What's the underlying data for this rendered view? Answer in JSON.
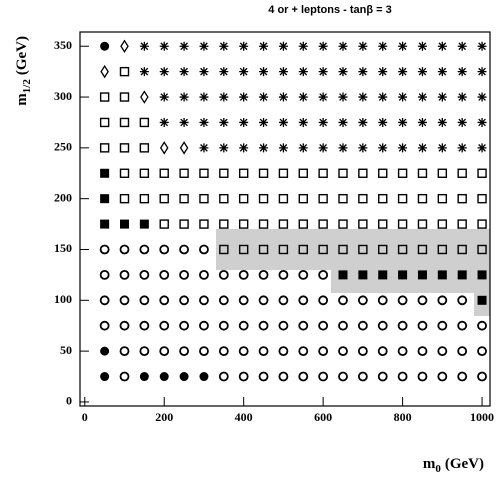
{
  "chart_data": {
    "type": "scatter",
    "title": "4 or + leptons - tanβ = 3",
    "x_label": {
      "main": "m",
      "sub": "0",
      "unit": "(GeV)"
    },
    "y_label": {
      "main": "m",
      "sub": "1/2",
      "unit": "(GeV)"
    },
    "xlim": [
      -12,
      1020
    ],
    "ylim": [
      -4,
      364
    ],
    "xticks": [
      0,
      200,
      400,
      600,
      800,
      1000
    ],
    "yticks": [
      0,
      50,
      100,
      150,
      200,
      250,
      300,
      350
    ],
    "series": [
      {
        "marker": "filled-circle",
        "color": "#000000",
        "x": [
          50,
          50,
          50,
          150,
          200,
          250,
          300
        ],
        "y": [
          350,
          50,
          25,
          25,
          25,
          25,
          25
        ]
      },
      {
        "marker": "diamond",
        "color": "#000000",
        "x": [
          100,
          50,
          150,
          200,
          250
        ],
        "y": [
          350,
          325,
          300,
          250,
          250
        ]
      },
      {
        "marker": "open-square",
        "color": "#000000",
        "x": [
          100,
          50,
          100,
          50,
          100,
          150,
          50,
          100,
          150,
          100,
          150,
          200,
          250,
          300,
          350,
          400,
          450,
          500,
          550,
          600,
          650,
          700,
          750,
          800,
          850,
          900,
          950,
          1000,
          100,
          150,
          200,
          250,
          300,
          350,
          400,
          450,
          500,
          550,
          600,
          650,
          700,
          750,
          800,
          850,
          900,
          950,
          1000,
          200,
          250,
          300,
          350,
          400,
          450,
          500,
          550,
          600,
          650,
          700,
          750,
          800,
          850,
          900,
          950,
          1000,
          350,
          400,
          450,
          500,
          550,
          600,
          650,
          700,
          750,
          800,
          850,
          900,
          950,
          1000
        ],
        "y": [
          325,
          300,
          300,
          275,
          275,
          275,
          250,
          250,
          250,
          225,
          225,
          225,
          225,
          225,
          225,
          225,
          225,
          225,
          225,
          225,
          225,
          225,
          225,
          225,
          225,
          225,
          225,
          225,
          200,
          200,
          200,
          200,
          200,
          200,
          200,
          200,
          200,
          200,
          200,
          200,
          200,
          200,
          200,
          200,
          200,
          200,
          200,
          175,
          175,
          175,
          175,
          175,
          175,
          175,
          175,
          175,
          175,
          175,
          175,
          175,
          175,
          175,
          175,
          175,
          150,
          150,
          150,
          150,
          150,
          150,
          150,
          150,
          150,
          150,
          150,
          150,
          150,
          150
        ]
      },
      {
        "marker": "filled-square",
        "color": "#000000",
        "x": [
          50,
          50,
          50,
          100,
          150,
          650,
          700,
          750,
          800,
          850,
          900,
          950,
          1000,
          1000
        ],
        "y": [
          225,
          200,
          175,
          175,
          175,
          125,
          125,
          125,
          125,
          125,
          125,
          125,
          125,
          100
        ]
      },
      {
        "marker": "asterisk",
        "color": "#000000",
        "x": [
          150,
          200,
          250,
          300,
          350,
          400,
          450,
          500,
          550,
          600,
          650,
          700,
          750,
          800,
          850,
          900,
          950,
          1000,
          150,
          200,
          250,
          300,
          350,
          400,
          450,
          500,
          550,
          600,
          650,
          700,
          750,
          800,
          850,
          900,
          950,
          1000,
          200,
          250,
          300,
          350,
          400,
          450,
          500,
          550,
          600,
          650,
          700,
          750,
          800,
          850,
          900,
          950,
          1000,
          200,
          250,
          300,
          350,
          400,
          450,
          500,
          550,
          600,
          650,
          700,
          750,
          800,
          850,
          900,
          950,
          1000,
          300,
          350,
          400,
          450,
          500,
          550,
          600,
          650,
          700,
          750,
          800,
          850,
          900,
          950,
          1000
        ],
        "y": [
          350,
          350,
          350,
          350,
          350,
          350,
          350,
          350,
          350,
          350,
          350,
          350,
          350,
          350,
          350,
          350,
          350,
          350,
          325,
          325,
          325,
          325,
          325,
          325,
          325,
          325,
          325,
          325,
          325,
          325,
          325,
          325,
          325,
          325,
          325,
          325,
          300,
          300,
          300,
          300,
          300,
          300,
          300,
          300,
          300,
          300,
          300,
          300,
          300,
          300,
          300,
          300,
          300,
          275,
          275,
          275,
          275,
          275,
          275,
          275,
          275,
          275,
          275,
          275,
          275,
          275,
          275,
          275,
          275,
          275,
          250,
          250,
          250,
          250,
          250,
          250,
          250,
          250,
          250,
          250,
          250,
          250,
          250,
          250,
          250
        ]
      },
      {
        "marker": "open-circle",
        "color": "#000000",
        "x": [
          50,
          100,
          150,
          200,
          250,
          300,
          50,
          100,
          150,
          200,
          250,
          300,
          350,
          400,
          450,
          500,
          550,
          600,
          50,
          100,
          150,
          200,
          250,
          300,
          350,
          400,
          450,
          500,
          550,
          600,
          650,
          700,
          750,
          800,
          850,
          900,
          950,
          50,
          100,
          150,
          200,
          250,
          300,
          350,
          400,
          450,
          500,
          550,
          600,
          650,
          700,
          750,
          800,
          850,
          900,
          950,
          1000,
          100,
          150,
          200,
          250,
          300,
          350,
          400,
          450,
          500,
          550,
          600,
          650,
          700,
          750,
          800,
          850,
          900,
          950,
          1000,
          100,
          350,
          400,
          450,
          500,
          550,
          600,
          650,
          700,
          750,
          800,
          850,
          900,
          950,
          1000
        ],
        "y": [
          150,
          150,
          150,
          150,
          150,
          150,
          125,
          125,
          125,
          125,
          125,
          125,
          125,
          125,
          125,
          125,
          125,
          125,
          100,
          100,
          100,
          100,
          100,
          100,
          100,
          100,
          100,
          100,
          100,
          100,
          100,
          100,
          100,
          100,
          100,
          100,
          100,
          75,
          75,
          75,
          75,
          75,
          75,
          75,
          75,
          75,
          75,
          75,
          75,
          75,
          75,
          75,
          75,
          75,
          75,
          75,
          75,
          50,
          50,
          50,
          50,
          50,
          50,
          50,
          50,
          50,
          50,
          50,
          50,
          50,
          50,
          50,
          50,
          50,
          50,
          50,
          25,
          25,
          25,
          25,
          25,
          25,
          25,
          25,
          25,
          25,
          25,
          25,
          25,
          25,
          25
        ]
      }
    ]
  }
}
